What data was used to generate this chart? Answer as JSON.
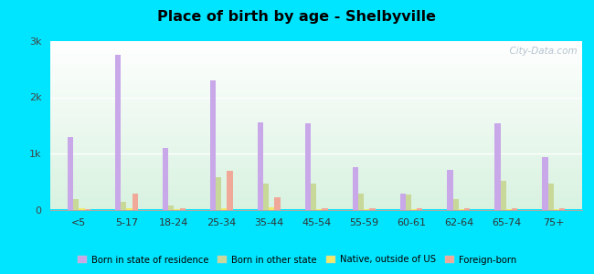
{
  "title": "Place of birth by age - Shelbyville",
  "categories": [
    "<5",
    "5-17",
    "18-24",
    "25-34",
    "35-44",
    "45-54",
    "55-59",
    "60-61",
    "62-64",
    "65-74",
    "75+"
  ],
  "series": {
    "Born in state of residence": [
      1300,
      2750,
      1100,
      2300,
      1550,
      1530,
      750,
      280,
      700,
      1530,
      930
    ],
    "Born in other state": [
      180,
      140,
      70,
      580,
      470,
      460,
      290,
      270,
      180,
      520,
      460
    ],
    "Native, outside of US": [
      20,
      30,
      15,
      30,
      40,
      15,
      15,
      15,
      15,
      15,
      15
    ],
    "Foreign-born": [
      10,
      280,
      20,
      690,
      220,
      20,
      20,
      20,
      20,
      20,
      20
    ]
  },
  "colors": {
    "Born in state of residence": "#c8a8e8",
    "Born in other state": "#c8d898",
    "Native, outside of US": "#f0e868",
    "Foreign-born": "#f0a898"
  },
  "ylim": [
    0,
    3000
  ],
  "yticks": [
    0,
    1000,
    2000,
    3000
  ],
  "ytick_labels": [
    "0",
    "1k",
    "2k",
    "3k"
  ],
  "outer_color": "#00e5ff",
  "watermark": "  City-Data.com"
}
